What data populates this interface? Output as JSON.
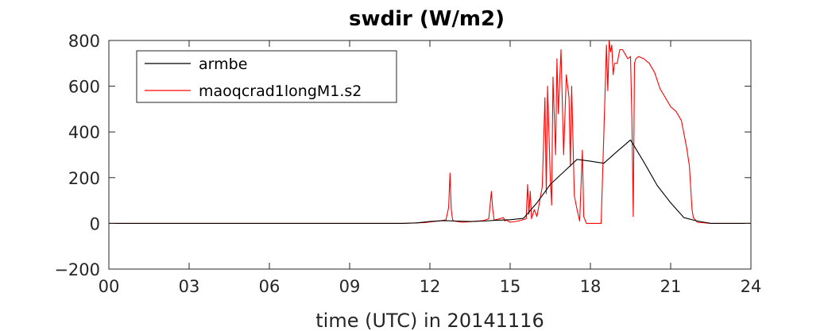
{
  "chart_data": {
    "type": "line",
    "title": "swdir  (W/m2)",
    "xlabel": "time (UTC) in 20141116",
    "ylabel": "",
    "xlim": [
      0,
      24
    ],
    "ylim": [
      -200,
      800
    ],
    "x_ticks": [
      "00",
      "03",
      "06",
      "09",
      "12",
      "15",
      "18",
      "21",
      "24"
    ],
    "y_ticks": [
      "-200",
      "0",
      "200",
      "400",
      "600",
      "800"
    ],
    "legend_position": "top-left",
    "grid": false,
    "series": [
      {
        "name": "armbe",
        "color": "#000000",
        "x": [
          0,
          1,
          2,
          3,
          4,
          5,
          6,
          7,
          8,
          9,
          10,
          11,
          11.5,
          12,
          12.5,
          13,
          13.5,
          14,
          14.5,
          15,
          15.5,
          16,
          16.5,
          17,
          17.5,
          18,
          18.5,
          19,
          19.5,
          20,
          20.5,
          21,
          21.5,
          22,
          22.5,
          23,
          24
        ],
        "y": [
          0,
          0,
          0,
          0,
          0,
          0,
          0,
          0,
          0,
          0,
          0,
          0,
          2,
          8,
          12,
          10,
          8,
          10,
          14,
          16,
          22,
          90,
          170,
          225,
          280,
          272,
          263,
          315,
          365,
          268,
          165,
          90,
          25,
          10,
          0,
          0,
          0
        ]
      },
      {
        "name": "maoqcrad1longM1.s2",
        "color": "#ff0000",
        "x": [
          0,
          6,
          11,
          11.8,
          12.3,
          12.6,
          12.7,
          12.75,
          12.8,
          12.85,
          12.9,
          13.2,
          13.6,
          14.0,
          14.2,
          14.3,
          14.35,
          14.4,
          14.6,
          14.75,
          14.8,
          14.85,
          15.0,
          15.3,
          15.6,
          15.65,
          15.7,
          15.75,
          15.8,
          15.9,
          16.0,
          16.2,
          16.3,
          16.35,
          16.4,
          16.5,
          16.55,
          16.6,
          16.7,
          16.75,
          16.8,
          16.9,
          17.0,
          17.1,
          17.2,
          17.25,
          17.3,
          17.4,
          17.5,
          17.6,
          17.7,
          17.75,
          17.85,
          17.9,
          17.95,
          18.0,
          18.1,
          18.2,
          18.3,
          18.4,
          18.5,
          18.6,
          18.65,
          18.7,
          18.75,
          18.8,
          18.85,
          18.9,
          19.0,
          19.1,
          19.2,
          19.3,
          19.4,
          19.5,
          19.55,
          19.6,
          19.65,
          19.7,
          19.8,
          20.0,
          20.2,
          20.4,
          20.6,
          20.8,
          21.0,
          21.2,
          21.4,
          21.6,
          21.7,
          21.8,
          21.85,
          22.0,
          22.5,
          23,
          24
        ],
        "y": [
          0,
          0,
          0,
          3,
          10,
          15,
          70,
          220,
          60,
          15,
          10,
          5,
          8,
          12,
          20,
          140,
          60,
          15,
          20,
          25,
          10,
          15,
          5,
          10,
          20,
          170,
          40,
          140,
          20,
          60,
          30,
          160,
          550,
          130,
          600,
          200,
          80,
          640,
          300,
          720,
          480,
          760,
          300,
          650,
          550,
          250,
          600,
          120,
          60,
          10,
          320,
          30,
          0,
          0,
          0,
          0,
          0,
          0,
          0,
          0,
          380,
          780,
          580,
          800,
          750,
          780,
          650,
          700,
          700,
          760,
          760,
          740,
          720,
          730,
          460,
          30,
          700,
          720,
          730,
          720,
          700,
          660,
          590,
          550,
          510,
          490,
          450,
          330,
          250,
          60,
          25,
          5,
          0,
          0,
          0
        ]
      }
    ]
  }
}
